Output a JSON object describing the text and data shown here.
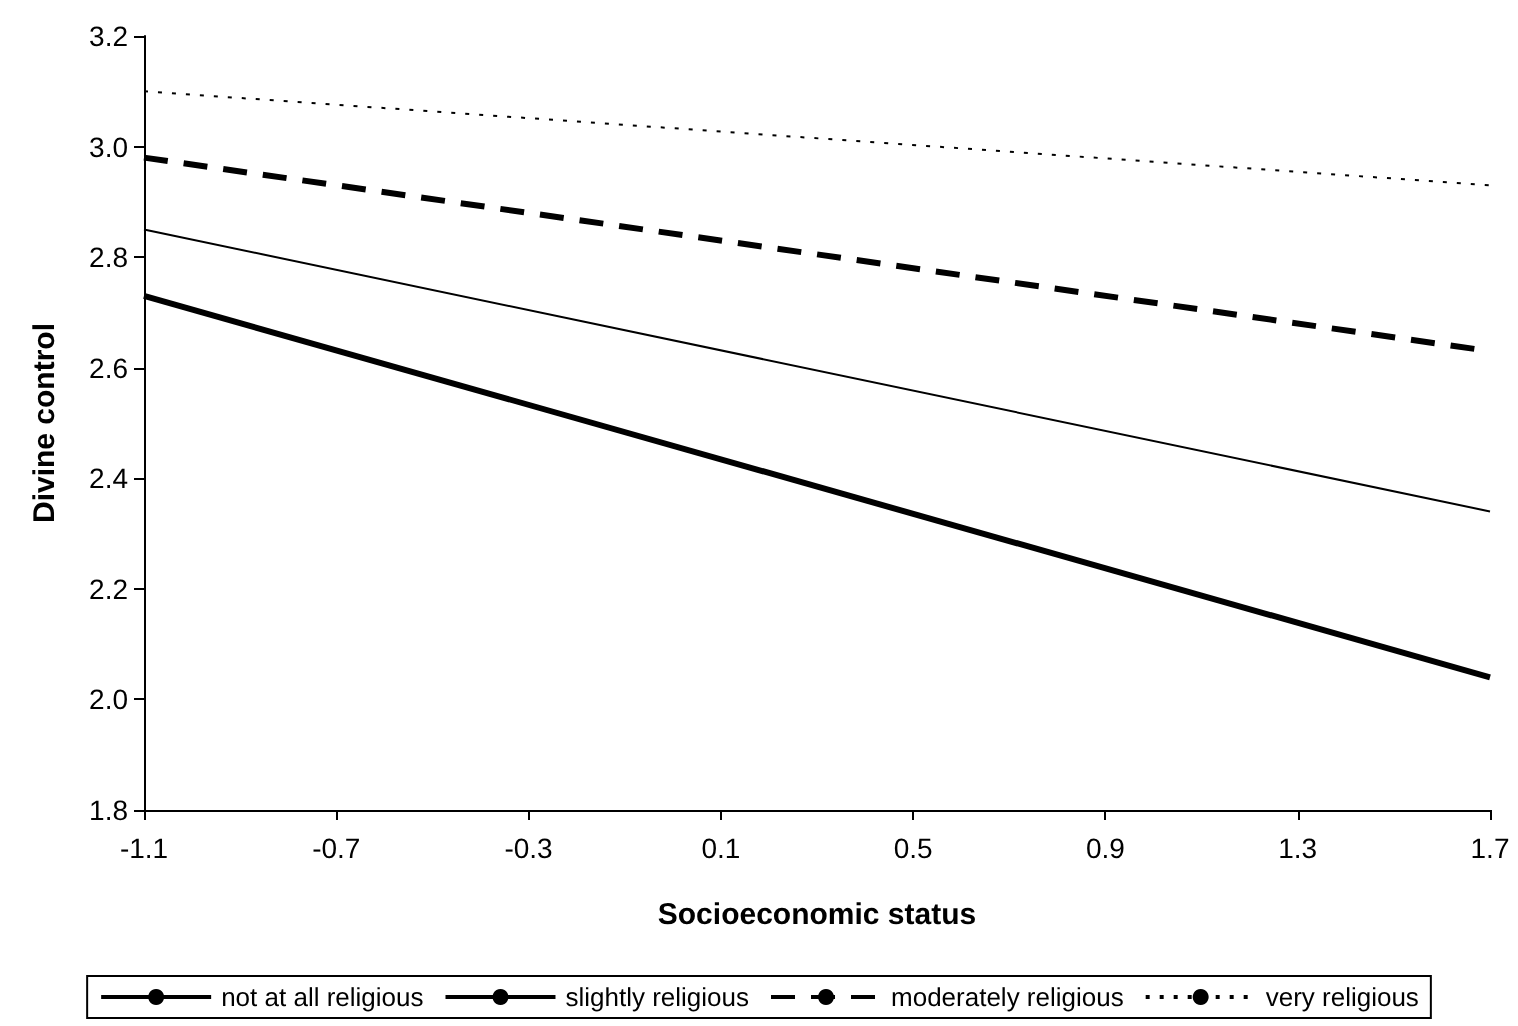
{
  "chart_data": {
    "type": "line",
    "xlabel": "Socioeconomic status",
    "ylabel": "Divine control",
    "x": [
      -1.1,
      1.7
    ],
    "series": [
      {
        "name": "not at all religious",
        "color": "#000000",
        "values": [
          2.73,
          2.04
        ],
        "line_style": "solid"
      },
      {
        "name": "slightly religious",
        "color": "#000000",
        "values": [
          2.85,
          2.34
        ],
        "line_style": "solid"
      },
      {
        "name": "moderately religious",
        "color": "#000000",
        "values": [
          2.98,
          2.63
        ],
        "line_style": "dashed"
      },
      {
        "name": "very religious",
        "color": "#000000",
        "values": [
          3.1,
          2.93
        ],
        "line_style": "dotted"
      }
    ],
    "xlim": [
      -1.1,
      1.7
    ],
    "xticks": [
      -1.1,
      -0.7,
      -0.3,
      0.1,
      0.5,
      0.9,
      1.3,
      1.7
    ],
    "ylim": [
      1.8,
      3.2
    ],
    "yticks": [
      1.8,
      {
        "value": 2,
        "label": "2.0"
      },
      2.2,
      2.4,
      2.6,
      2.8,
      {
        "value": 3,
        "label": "3.0"
      },
      3.2
    ],
    "grid": false,
    "legend": "bottom",
    "marker": "none"
  }
}
